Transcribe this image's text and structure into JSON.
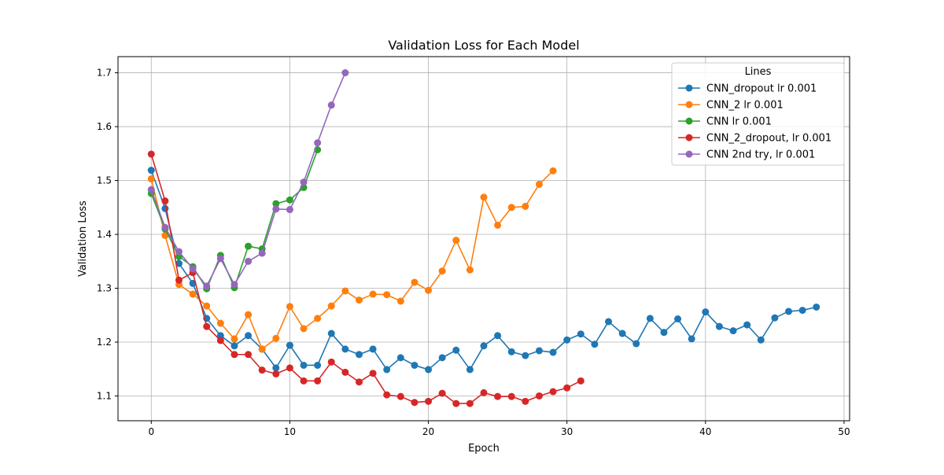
{
  "chart_data": {
    "type": "line",
    "title": "Validation Loss for Each Model",
    "xlabel": "Epoch",
    "ylabel": "Validation Loss",
    "xlim": [
      -2.4,
      50.4
    ],
    "ylim": [
      1.054,
      1.73
    ],
    "xticks": [
      0,
      10,
      20,
      30,
      40,
      50
    ],
    "yticks": [
      1.1,
      1.2,
      1.3,
      1.4,
      1.5,
      1.6,
      1.7
    ],
    "xtick_labels": [
      "0",
      "10",
      "20",
      "30",
      "40",
      "50"
    ],
    "ytick_labels": [
      "1.1",
      "1.2",
      "1.3",
      "1.4",
      "1.5",
      "1.6",
      "1.7"
    ],
    "grid": true,
    "legend": {
      "title": "Lines",
      "position": "top-right"
    },
    "series": [
      {
        "name": "CNN_dropout lr 0.001",
        "color": "#1f77b4",
        "y": [
          1.519,
          1.448,
          1.346,
          1.309,
          1.244,
          1.212,
          1.193,
          1.212,
          1.187,
          1.152,
          1.194,
          1.157,
          1.157,
          1.216,
          1.187,
          1.177,
          1.187,
          1.149,
          1.171,
          1.157,
          1.149,
          1.171,
          1.185,
          1.149,
          1.193,
          1.212,
          1.182,
          1.175,
          1.184,
          1.181,
          1.204,
          1.215,
          1.196,
          1.238,
          1.216,
          1.197,
          1.244,
          1.218,
          1.243,
          1.206,
          1.256,
          1.229,
          1.221,
          1.232,
          1.204,
          1.245,
          1.257,
          1.259,
          1.265
        ]
      },
      {
        "name": "CNN_2 lr 0.001",
        "color": "#ff7f0e",
        "y": [
          1.503,
          1.398,
          1.307,
          1.289,
          1.267,
          1.235,
          1.206,
          1.251,
          1.187,
          1.207,
          1.266,
          1.225,
          1.244,
          1.267,
          1.295,
          1.278,
          1.289,
          1.288,
          1.276,
          1.311,
          1.296,
          1.332,
          1.389,
          1.334,
          1.469,
          1.417,
          1.45,
          1.452,
          1.493,
          1.518
        ]
      },
      {
        "name": "CNN lr 0.001",
        "color": "#2ca02c",
        "y": [
          1.476,
          1.41,
          1.359,
          1.34,
          1.299,
          1.361,
          1.301,
          1.378,
          1.373,
          1.457,
          1.464,
          1.487,
          1.557
        ]
      },
      {
        "name": "CNN_2_dropout, lr 0.001",
        "color": "#d62728",
        "y": [
          1.549,
          1.462,
          1.315,
          1.329,
          1.229,
          1.203,
          1.177,
          1.177,
          1.148,
          1.141,
          1.152,
          1.128,
          1.128,
          1.163,
          1.144,
          1.126,
          1.142,
          1.102,
          1.099,
          1.088,
          1.09,
          1.105,
          1.086,
          1.086,
          1.106,
          1.099,
          1.099,
          1.09,
          1.1,
          1.108,
          1.115,
          1.128
        ]
      },
      {
        "name": "CNN 2nd try, lr 0.001",
        "color": "#9467bd",
        "y": [
          1.483,
          1.413,
          1.368,
          1.336,
          1.304,
          1.355,
          1.307,
          1.35,
          1.365,
          1.447,
          1.446,
          1.497,
          1.57,
          1.64,
          1.7
        ]
      }
    ]
  }
}
